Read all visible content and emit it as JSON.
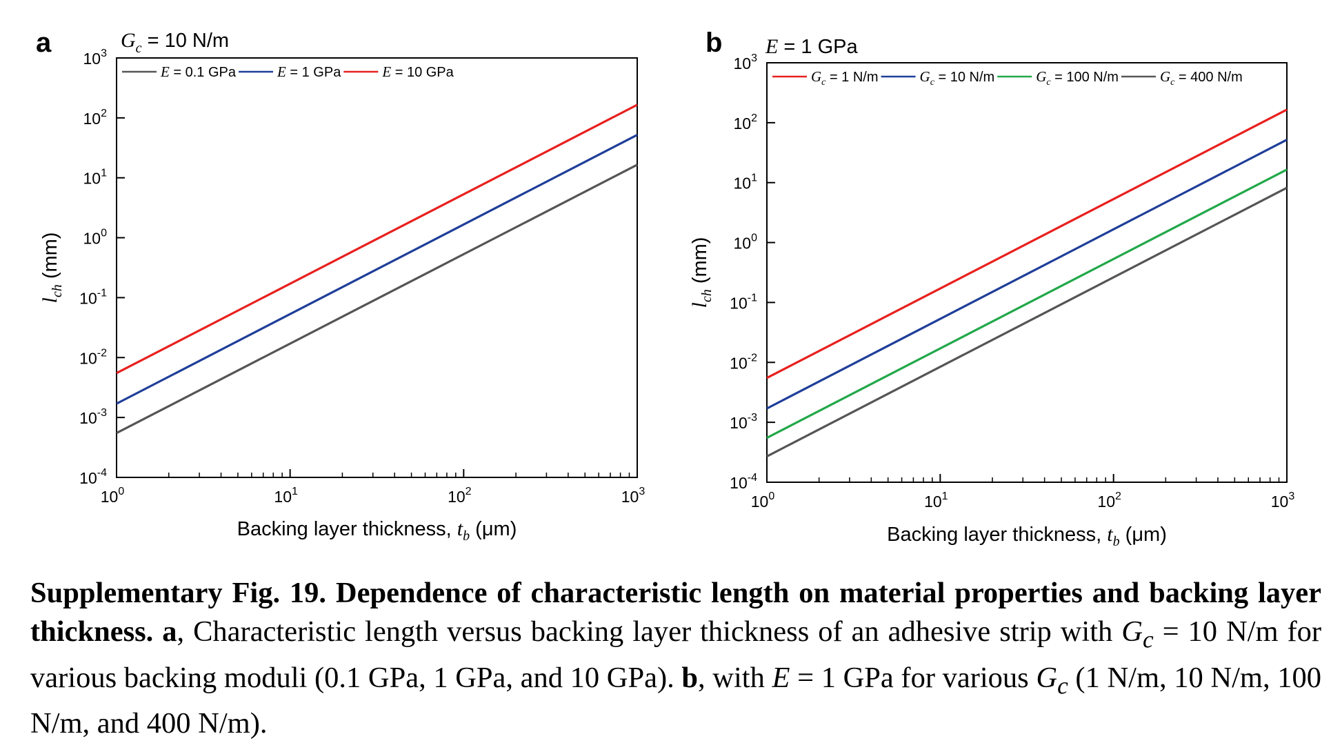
{
  "panels": [
    {
      "letter": "a",
      "fixed_param": {
        "symbol": "G",
        "sub": "c",
        "text": " = 10 N/m"
      },
      "ylabel": {
        "symbol": "l",
        "sub": "ch",
        "text": " (mm)"
      },
      "xlabel": {
        "text": "Backing layer thickness, ",
        "symbol": "t",
        "sub": "b",
        "unit": " (μm)"
      },
      "x_ticks": [
        "0",
        "1",
        "2",
        "3"
      ],
      "y_ticks": [
        "-4",
        "-3",
        "-2",
        "-1",
        "0",
        "1",
        "2",
        "3"
      ],
      "legend": [
        {
          "symbol": "E",
          "sub": "",
          "text": " = 0.1 GPa",
          "color": "#555555"
        },
        {
          "symbol": "E",
          "sub": "",
          "text": " = 1 GPa",
          "color": "#1f3e99"
        },
        {
          "symbol": "E",
          "sub": "",
          "text": " = 10 GPa",
          "color": "#e8201e"
        }
      ]
    },
    {
      "letter": "b",
      "fixed_param": {
        "symbol": "E",
        "sub": "",
        "text": " = 1 GPa"
      },
      "ylabel": {
        "symbol": "l",
        "sub": "ch",
        "text": " (mm)"
      },
      "xlabel": {
        "text": "Backing layer thickness, ",
        "symbol": "t",
        "sub": "b",
        "unit": " (μm)"
      },
      "x_ticks": [
        "0",
        "1",
        "2",
        "3"
      ],
      "y_ticks": [
        "-4",
        "-3",
        "-2",
        "-1",
        "0",
        "1",
        "2",
        "3"
      ],
      "legend": [
        {
          "symbol": "G",
          "sub": "c",
          "text": " = 1 N/m",
          "color": "#e8201e"
        },
        {
          "symbol": "G",
          "sub": "c",
          "text": " = 10 N/m",
          "color": "#1f3e99"
        },
        {
          "symbol": "G",
          "sub": "c",
          "text": " = 100 N/m",
          "color": "#22a84a"
        },
        {
          "symbol": "G",
          "sub": "c",
          "text": " = 400 N/m",
          "color": "#555555"
        }
      ]
    }
  ],
  "chart_data": [
    {
      "type": "line",
      "xscale": "log",
      "yscale": "log",
      "xlim": [
        1,
        1000
      ],
      "ylim": [
        0.0001,
        1000
      ],
      "xlabel": "Backing layer thickness, t_b (μm)",
      "ylabel": "l_ch (mm)",
      "title": "G_c = 10 N/m",
      "legend_position": "top",
      "series": [
        {
          "name": "E = 0.1 GPa",
          "color": "#555555",
          "x": [
            1,
            1000
          ],
          "y": [
            0.00055,
            16.5
          ]
        },
        {
          "name": "E = 1 GPa",
          "color": "#1f3e99",
          "x": [
            1,
            1000
          ],
          "y": [
            0.0017,
            52
          ]
        },
        {
          "name": "E = 10 GPa",
          "color": "#e8201e",
          "x": [
            1,
            1000
          ],
          "y": [
            0.0055,
            165
          ]
        }
      ]
    },
    {
      "type": "line",
      "xscale": "log",
      "yscale": "log",
      "xlim": [
        1,
        1000
      ],
      "ylim": [
        0.0001,
        1000
      ],
      "xlabel": "Backing layer thickness, t_b (μm)",
      "ylabel": "l_ch (mm)",
      "title": "E = 1 GPa",
      "legend_position": "top",
      "series": [
        {
          "name": "G_c = 1 N/m",
          "color": "#e8201e",
          "x": [
            1,
            1000
          ],
          "y": [
            0.0055,
            165
          ]
        },
        {
          "name": "G_c = 10 N/m",
          "color": "#1f3e99",
          "x": [
            1,
            1000
          ],
          "y": [
            0.0017,
            52
          ]
        },
        {
          "name": "G_c = 100 N/m",
          "color": "#22a84a",
          "x": [
            1,
            1000
          ],
          "y": [
            0.00055,
            16.5
          ]
        },
        {
          "name": "G_c = 400 N/m",
          "color": "#555555",
          "x": [
            1,
            1000
          ],
          "y": [
            0.00027,
            8.2
          ]
        }
      ]
    }
  ],
  "caption": {
    "title": "Supplementary Fig. 19.",
    "heading": "Dependence of characteristic length on material properties and backing layer thickness.",
    "a_label": "a",
    "a_text_1": ", Characteristic length versus backing layer thickness of an adhesive strip with ",
    "a_sym": "G",
    "a_sub": "c",
    "a_text_2": " = 10 N/m for various backing moduli (0.1 GPa, 1 GPa, and 10 GPa). ",
    "b_label": "b",
    "b_text_1": ", with ",
    "b_sym": "E",
    "b_text_2": " = 1 GPa for various ",
    "b_sym2": "G",
    "b_sub2": "c",
    "b_text_3": " (1 N/m, 10 N/m, 100 N/m, and 400 N/m)."
  }
}
